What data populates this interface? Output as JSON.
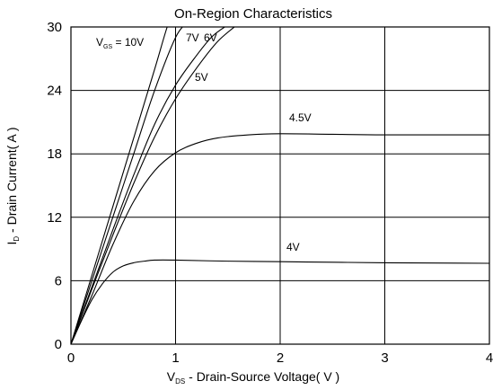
{
  "chart_data": {
    "type": "line",
    "title": "On-Region Characteristics",
    "xlabel": "VDS - Drain-Source Voltage( V )",
    "xlabel_parts": {
      "main": "V",
      "sub": "DS",
      "rest": " - Drain-Source Voltage( V )"
    },
    "ylabel": "ID - Drain Current( A )",
    "ylabel_parts": {
      "main": "I",
      "sub": "D",
      "rest": " - Drain Current( A )"
    },
    "xlim": [
      0,
      4
    ],
    "ylim": [
      0,
      30
    ],
    "xticks": [
      0,
      1,
      2,
      3,
      4
    ],
    "yticks": [
      0,
      6,
      12,
      18,
      24,
      30
    ],
    "grid": true,
    "series": [
      {
        "name": "VGS = 10V",
        "label_parts": {
          "main": "V",
          "sub": "GS",
          "rest": " = 10V"
        },
        "x": [
          0,
          0.2,
          0.4,
          0.6,
          0.8,
          0.92,
          1.0
        ],
        "y": [
          0,
          6.5,
          13,
          19.5,
          26,
          30,
          32
        ]
      },
      {
        "name": "7V",
        "label_parts": {
          "main": "7V",
          "sub": "",
          "rest": ""
        },
        "x": [
          0,
          0.2,
          0.4,
          0.6,
          0.8,
          1.0,
          1.12
        ],
        "y": [
          0,
          6,
          12,
          18,
          24,
          29,
          30.5
        ]
      },
      {
        "name": "6V",
        "label_parts": {
          "main": "6V",
          "sub": "",
          "rest": ""
        },
        "x": [
          0,
          0.2,
          0.4,
          0.6,
          0.8,
          1.0,
          1.2,
          1.35,
          1.5
        ],
        "y": [
          0,
          5.4,
          10.8,
          16,
          20.8,
          24.5,
          27.3,
          29.1,
          30.2
        ]
      },
      {
        "name": "5V",
        "label_parts": {
          "main": "5V",
          "sub": "",
          "rest": ""
        },
        "x": [
          0,
          0.2,
          0.4,
          0.6,
          0.8,
          1.0,
          1.2,
          1.4,
          1.6
        ],
        "y": [
          0,
          5.2,
          10.3,
          15.2,
          19.6,
          23.2,
          26.1,
          28.6,
          30.3
        ]
      },
      {
        "name": "4.5V",
        "label_parts": {
          "main": "4.5V",
          "sub": "",
          "rest": ""
        },
        "x": [
          0,
          0.2,
          0.4,
          0.6,
          0.8,
          1.0,
          1.2,
          1.4,
          1.7,
          2.0,
          2.5,
          3.0,
          4.0
        ],
        "y": [
          0,
          4.6,
          9.4,
          13.5,
          16.4,
          18.1,
          19.0,
          19.5,
          19.8,
          19.9,
          19.85,
          19.8,
          19.8
        ]
      },
      {
        "name": "4V",
        "label_parts": {
          "main": "4V",
          "sub": "",
          "rest": ""
        },
        "x": [
          0,
          0.1,
          0.2,
          0.3,
          0.4,
          0.5,
          0.6,
          0.7,
          0.8,
          1.0,
          1.5,
          2.0,
          2.5,
          3.0,
          4.0
        ],
        "y": [
          0,
          2.2,
          4.2,
          5.7,
          6.8,
          7.4,
          7.7,
          7.85,
          7.95,
          7.95,
          7.85,
          7.8,
          7.75,
          7.7,
          7.65
        ]
      }
    ]
  }
}
